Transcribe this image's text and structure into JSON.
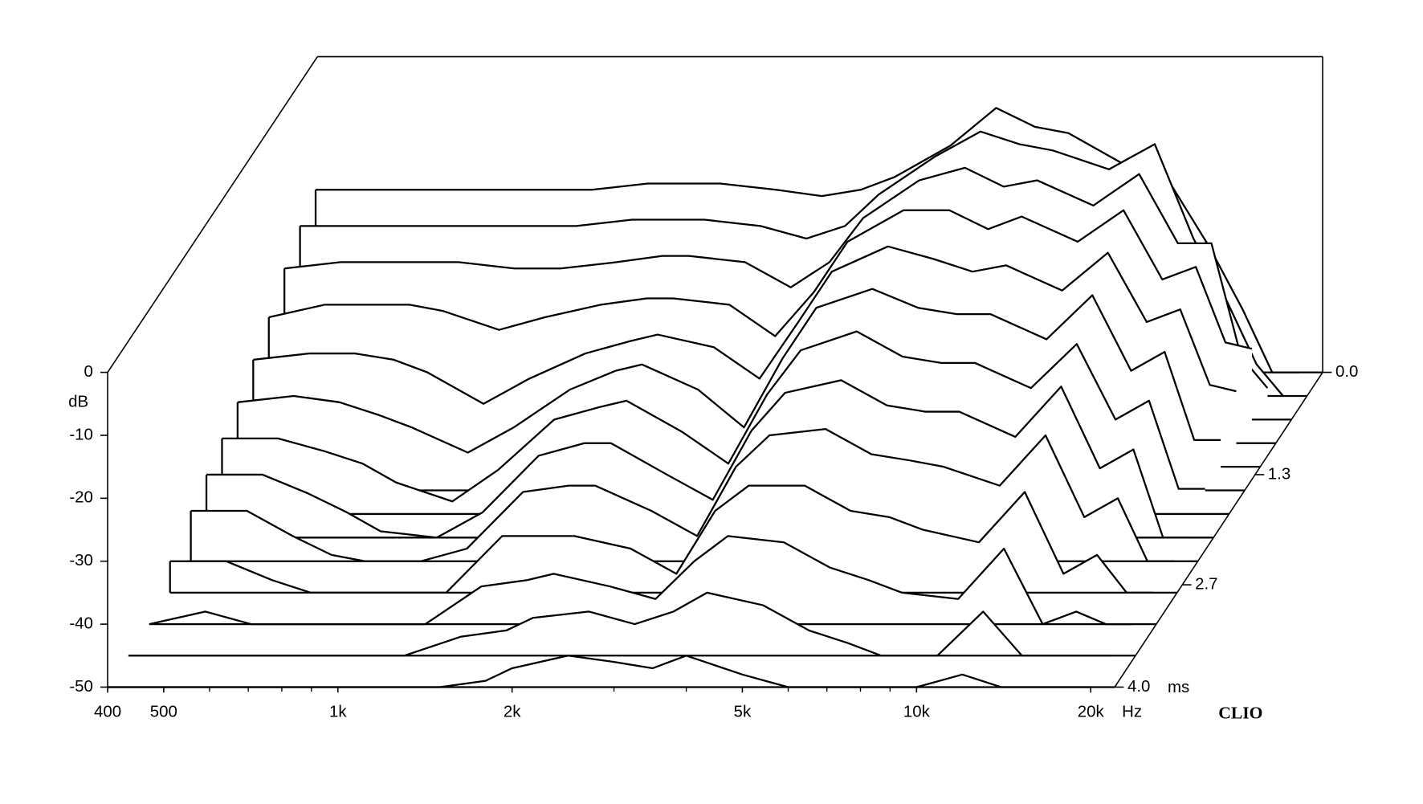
{
  "chart_data": {
    "type": "waterfall",
    "ylabel": "dB",
    "x_unit": "Hz",
    "z_unit": "ms",
    "brand": "CLIO",
    "xscale": "log",
    "xlim": [
      400,
      22000
    ],
    "xticks": [
      400,
      500,
      {
        "value": 1000,
        "label": "1k"
      },
      {
        "value": 2000,
        "label": "2k"
      },
      {
        "value": 5000,
        "label": "5k"
      },
      {
        "value": 10000,
        "label": "10k"
      },
      {
        "value": 20000,
        "label": "20k"
      }
    ],
    "xminor": [
      600,
      700,
      800,
      900,
      3000,
      4000,
      6000,
      7000,
      8000,
      9000
    ],
    "ylim": [
      -50,
      0
    ],
    "yticks": [
      0,
      -10,
      -20,
      -30,
      -40,
      -50
    ],
    "zlim": [
      0,
      4
    ],
    "zticks": [
      {
        "value": 0,
        "label": "0.0"
      },
      1.3,
      2.7,
      {
        "value": 4,
        "label": "4.0"
      }
    ],
    "color": "#000000",
    "x": [
      400,
      500,
      600,
      700,
      800,
      1000,
      1200,
      1500,
      1800,
      2000,
      2500,
      3000,
      3500,
      4000,
      5000,
      6000,
      7000,
      8000,
      10000,
      12000,
      14000,
      16000,
      18000,
      20000
    ],
    "z": [
      0.0,
      0.3,
      0.6,
      0.9,
      1.2,
      1.5,
      1.8,
      2.1,
      2.4,
      2.8,
      3.2,
      3.6,
      4.0
    ],
    "values": [
      [
        -21,
        -21,
        -21,
        -21,
        -21,
        -21,
        -21,
        -20,
        -20,
        -20,
        -21,
        -22,
        -21,
        -19,
        -14,
        -8,
        -11,
        -12,
        -17,
        -20,
        -30,
        -40,
        -50,
        -50
      ],
      [
        -23,
        -23,
        -23,
        -23,
        -23,
        -23,
        -23,
        -22,
        -22,
        -22,
        -23,
        -25,
        -23,
        -18,
        -12,
        -8,
        -10,
        -11,
        -14,
        -10,
        -25,
        -35,
        -45,
        -50
      ],
      [
        -26,
        -25,
        -25,
        -25,
        -25,
        -26,
        -26,
        -25,
        -24,
        -24,
        -25,
        -29,
        -25,
        -18,
        -12,
        -10,
        -13,
        -12,
        -16,
        -11,
        -22,
        -22,
        -40,
        -45
      ],
      [
        -30,
        -28,
        -28,
        -28,
        -29,
        -32,
        -30,
        -28,
        -27,
        -27,
        -28,
        -33,
        -26,
        -18,
        -13,
        -13,
        -16,
        -14,
        -18,
        -13,
        -24,
        -22,
        -34,
        -35
      ],
      [
        -33,
        -32,
        -32,
        -33,
        -35,
        -40,
        -36,
        -32,
        -30,
        -29,
        -31,
        -36,
        -27,
        -19,
        -15,
        -17,
        -19,
        -18,
        -22,
        -16,
        -27,
        -25,
        -37,
        -38
      ],
      [
        -36,
        -35,
        -36,
        -38,
        -40,
        -44,
        -40,
        -34,
        -31,
        -30,
        -34,
        -40,
        -29,
        -21,
        -18,
        -21,
        -22,
        -22,
        -26,
        -19,
        -31,
        -28,
        -42,
        -42
      ],
      [
        -38,
        -38,
        -40,
        -42,
        -45,
        -48,
        -43,
        -35,
        -33,
        -32,
        -37,
        -42,
        -31,
        -24,
        -21,
        -25,
        -26,
        -26,
        -30,
        -23,
        -35,
        -32,
        -46,
        -46
      ],
      [
        -40,
        -40,
        -43,
        -46,
        -49,
        -50,
        -46,
        -37,
        -35,
        -35,
        -40,
        -44,
        -33,
        -27,
        -25,
        -29,
        -30,
        -30,
        -34,
        -26,
        -39,
        -36,
        -50,
        -50
      ],
      [
        -42,
        -42,
        -46,
        -49,
        -50,
        -50,
        -48,
        -39,
        -38,
        -38,
        -42,
        -46,
        -35,
        -30,
        -29,
        -33,
        -34,
        -35,
        -38,
        -30,
        -43,
        -40,
        -50,
        -50
      ],
      [
        -45,
        -45,
        -48,
        -50,
        -50,
        -50,
        -50,
        -41,
        -41,
        -41,
        -43,
        -47,
        -37,
        -33,
        -33,
        -37,
        -38,
        -40,
        -42,
        -34,
        -47,
        -44,
        -50,
        -50
      ],
      [
        -50,
        -48,
        -50,
        -50,
        -50,
        -50,
        -50,
        -44,
        -43,
        -42,
        -44,
        -46,
        -40,
        -36,
        -37,
        -41,
        -43,
        -45,
        -46,
        -38,
        -50,
        -48,
        -50,
        -50
      ],
      [
        -50,
        -50,
        -50,
        -50,
        -50,
        -50,
        -50,
        -47,
        -46,
        -44,
        -43,
        -45,
        -43,
        -40,
        -42,
        -46,
        -48,
        -50,
        -50,
        -43,
        -50,
        -50,
        -50,
        -50
      ],
      [
        -50,
        -50,
        -50,
        -50,
        -50,
        -50,
        -50,
        -50,
        -49,
        -47,
        -45,
        -46,
        -47,
        -45,
        -48,
        -50,
        -50,
        -50,
        -50,
        -48,
        -50,
        -50,
        -50,
        -50
      ]
    ]
  }
}
